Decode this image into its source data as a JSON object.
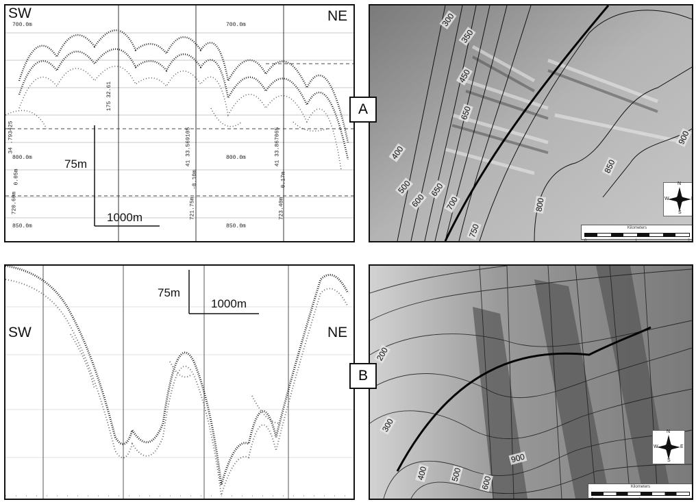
{
  "panel_a": {
    "profile": {
      "left_label": "SW",
      "right_label": "NE",
      "depth_top_left": "700.0m",
      "depth_top_mid": "700.0m",
      "depth_mid_left": "800.0m",
      "depth_mid_mid": "800.0m",
      "depth_bot_left": "850.0m",
      "depth_bot_mid": "850.0m",
      "scale_vertical": "75m",
      "scale_horizontal": "1000m",
      "vtext_1": "175 32.61",
      "vtext_2": "34 .793425",
      "vtext_3": "0.05m",
      "vtext_4": "720.60m",
      "vtext_5": "41 33.569105",
      "vtext_6": "-0.10m",
      "vtext_7": "721.75m",
      "vtext_8": "41 33.867065",
      "vtext_9": "0.17m",
      "vtext_10": "723.40m"
    },
    "badge": "A",
    "map": {
      "contours": [
        "300",
        "350",
        "450",
        "650",
        "400",
        "500",
        "600",
        "650",
        "700",
        "750",
        "800",
        "850",
        "900"
      ],
      "scalebar_caption": "Kilometers",
      "scalebar_ticks": [
        "0",
        "1",
        "2"
      ],
      "compass": {
        "n": "N",
        "s": "S",
        "e": "E",
        "w": "W"
      }
    }
  },
  "panel_b": {
    "profile": {
      "left_label": "SW",
      "right_label": "NE",
      "scale_vertical": "75m",
      "scale_horizontal": "1000m"
    },
    "badge": "B",
    "map": {
      "contours": [
        "200",
        "300",
        "900",
        "400",
        "500",
        "600"
      ],
      "scalebar_caption": "Kilometers",
      "scalebar_ticks": [
        "0",
        "1"
      ],
      "compass": {
        "n": "N",
        "s": "S",
        "e": "E",
        "w": "W"
      }
    }
  }
}
